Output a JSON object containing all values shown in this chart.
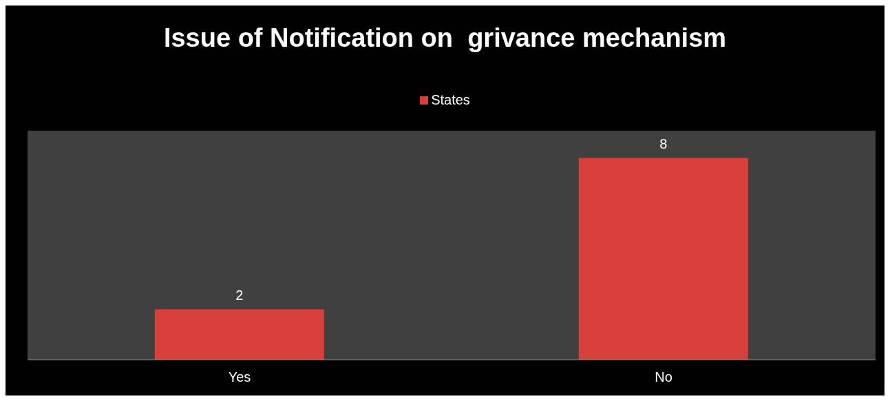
{
  "chart_data": {
    "type": "bar",
    "title": "Issue of Notification on  grivance mechanism",
    "categories": [
      "Yes",
      "No"
    ],
    "series": [
      {
        "name": "States",
        "color": "#d9403c",
        "values": [
          2,
          8
        ]
      }
    ],
    "data_labels": true,
    "legend": "top",
    "grid": false
  }
}
